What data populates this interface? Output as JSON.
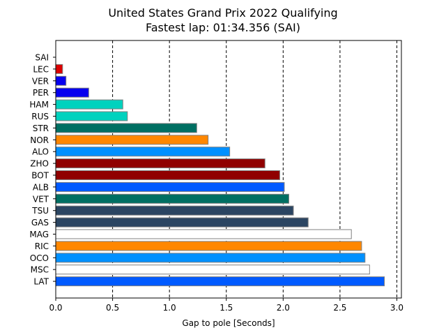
{
  "chart_data": {
    "type": "bar",
    "orientation": "horizontal",
    "title": "United States Grand Prix 2022 Qualifying",
    "subtitle": "Fastest lap: 01:34.356 (SAI)",
    "xlabel": "Gap to pole [Seconds]",
    "ylabel": "",
    "xlim": [
      0,
      3.04
    ],
    "xticks": [
      "0.0",
      "0.5",
      "1.0",
      "1.5",
      "2.0",
      "2.5",
      "3.0"
    ],
    "grid": "x-axis dashed vertical lines",
    "categories": [
      "SAI",
      "LEC",
      "VER",
      "PER",
      "HAM",
      "RUS",
      "STR",
      "NOR",
      "ALO",
      "ZHO",
      "BOT",
      "ALB",
      "VET",
      "TSU",
      "GAS",
      "MAG",
      "RIC",
      "OCO",
      "MSC",
      "LAT"
    ],
    "values": [
      0.0,
      0.06,
      0.09,
      0.29,
      0.59,
      0.63,
      1.24,
      1.34,
      1.53,
      1.84,
      1.97,
      2.01,
      2.05,
      2.09,
      2.22,
      2.6,
      2.69,
      2.72,
      2.76,
      2.89
    ],
    "colors": [
      "#FF0000",
      "#DC0000",
      "#0600EF",
      "#0600EF",
      "#00D2BE",
      "#00D2BE",
      "#006F62",
      "#FF8700",
      "#0090FF",
      "#900000",
      "#900000",
      "#005AFF",
      "#006F62",
      "#2B4562",
      "#2B4562",
      "#FFFFFF",
      "#FF8700",
      "#0090FF",
      "#FFFFFF",
      "#005AFF"
    ]
  }
}
